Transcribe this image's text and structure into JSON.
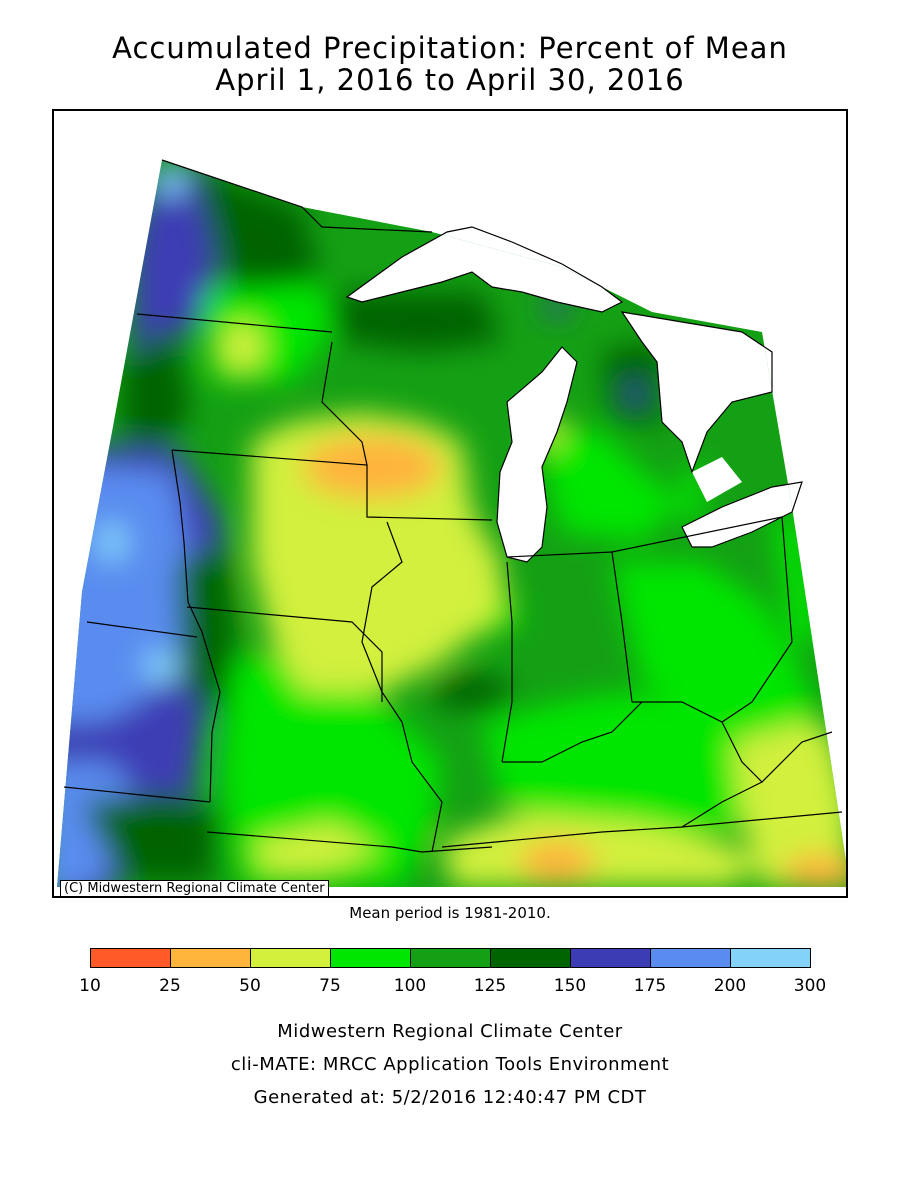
{
  "title": {
    "line1": "Accumulated Precipitation: Percent of Mean",
    "line2": "April 1, 2016 to April 30, 2016"
  },
  "map": {
    "credit": "(C) Midwestern Regional Climate Center",
    "mean_period": "Mean period is 1981-2010."
  },
  "legend": {
    "bins": [
      {
        "from": 10,
        "to": 25,
        "color": "#ff5a28"
      },
      {
        "from": 25,
        "to": 50,
        "color": "#ffb43c"
      },
      {
        "from": 50,
        "to": 75,
        "color": "#d2f03c"
      },
      {
        "from": 75,
        "to": 100,
        "color": "#00e600"
      },
      {
        "from": 100,
        "to": 125,
        "color": "#14a014"
      },
      {
        "from": 125,
        "to": 150,
        "color": "#006400"
      },
      {
        "from": 150,
        "to": 175,
        "color": "#3c3cb4"
      },
      {
        "from": 175,
        "to": 200,
        "color": "#5a8cf0"
      },
      {
        "from": 200,
        "to": 300,
        "color": "#82d2fa"
      }
    ],
    "ticks": [
      "10",
      "25",
      "50",
      "75",
      "100",
      "125",
      "150",
      "175",
      "200",
      "300"
    ]
  },
  "footer": {
    "line1": "Midwestern Regional Climate Center",
    "line2": "cli-MATE: MRCC Application Tools Environment",
    "line3": "Generated at: 5/2/2016 12:40:47 PM CDT"
  }
}
